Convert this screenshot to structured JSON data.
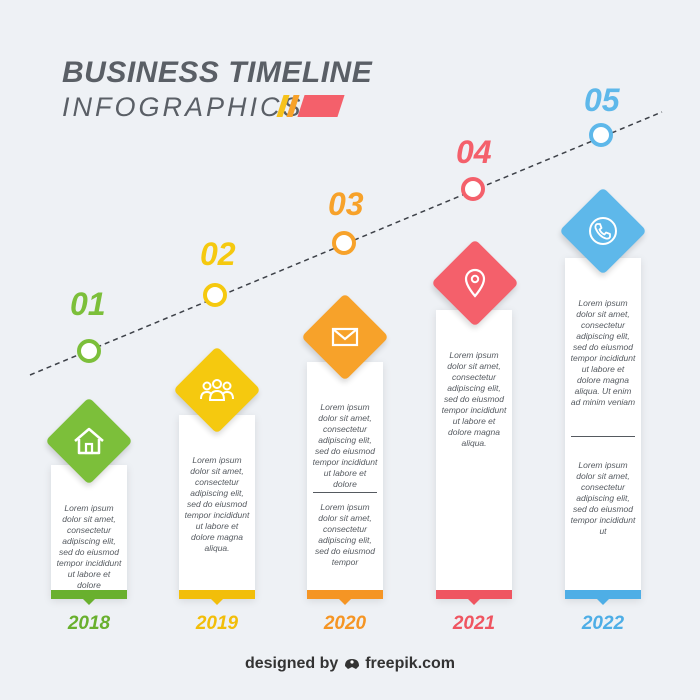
{
  "header": {
    "title": "BUSINESS TIMELINE",
    "subtitle": "INFOGRAPHICS"
  },
  "steps": [
    {
      "number": "01",
      "year": "2018",
      "color": "#7cbf3a",
      "bar_color": "#69b02e",
      "icon": "home-icon",
      "text_blocks": [
        "Lorem ipsum dolor sit amet, consectetur adipiscing elit, sed do eiusmod tempor incididunt ut labore et dolore"
      ]
    },
    {
      "number": "02",
      "year": "2019",
      "color": "#f5c90f",
      "bar_color": "#f2be0a",
      "icon": "team-icon",
      "text_blocks": [
        "Lorem ipsum dolor sit amet, consectetur adipiscing elit, sed do eiusmod tempor incididunt ut labore et dolore magna aliqua."
      ]
    },
    {
      "number": "03",
      "year": "2020",
      "color": "#f7a22a",
      "bar_color": "#f59524",
      "icon": "mail-icon",
      "text_blocks": [
        "Lorem ipsum dolor sit amet, consectetur adipiscing elit, sed do eiusmod tempor incididunt ut labore et dolore",
        "Lorem ipsum dolor sit amet, consectetur adipiscing elit, sed do eiusmod tempor"
      ]
    },
    {
      "number": "04",
      "year": "2021",
      "color": "#f4606b",
      "bar_color": "#ef5561",
      "icon": "location-pin-icon",
      "text_blocks": [
        "Lorem ipsum dolor sit amet, consectetur adipiscing elit, sed do eiusmod tempor incididunt ut labore et dolore magna aliqua."
      ]
    },
    {
      "number": "05",
      "year": "2022",
      "color": "#5eb8ea",
      "bar_color": "#4eaee6",
      "icon": "phone-icon",
      "text_blocks": [
        "Lorem ipsum dolor sit amet, consectetur adipiscing elit, sed do eiusmod tempor incididunt ut labore et dolore magna aliqua. Ut enim ad minim veniam",
        "Lorem ipsum dolor sit amet, consectetur adipiscing elit, sed do eiusmod tempor incididunt ut"
      ]
    }
  ],
  "footer": {
    "prefix": "designed by",
    "brand": "freepik.com"
  }
}
